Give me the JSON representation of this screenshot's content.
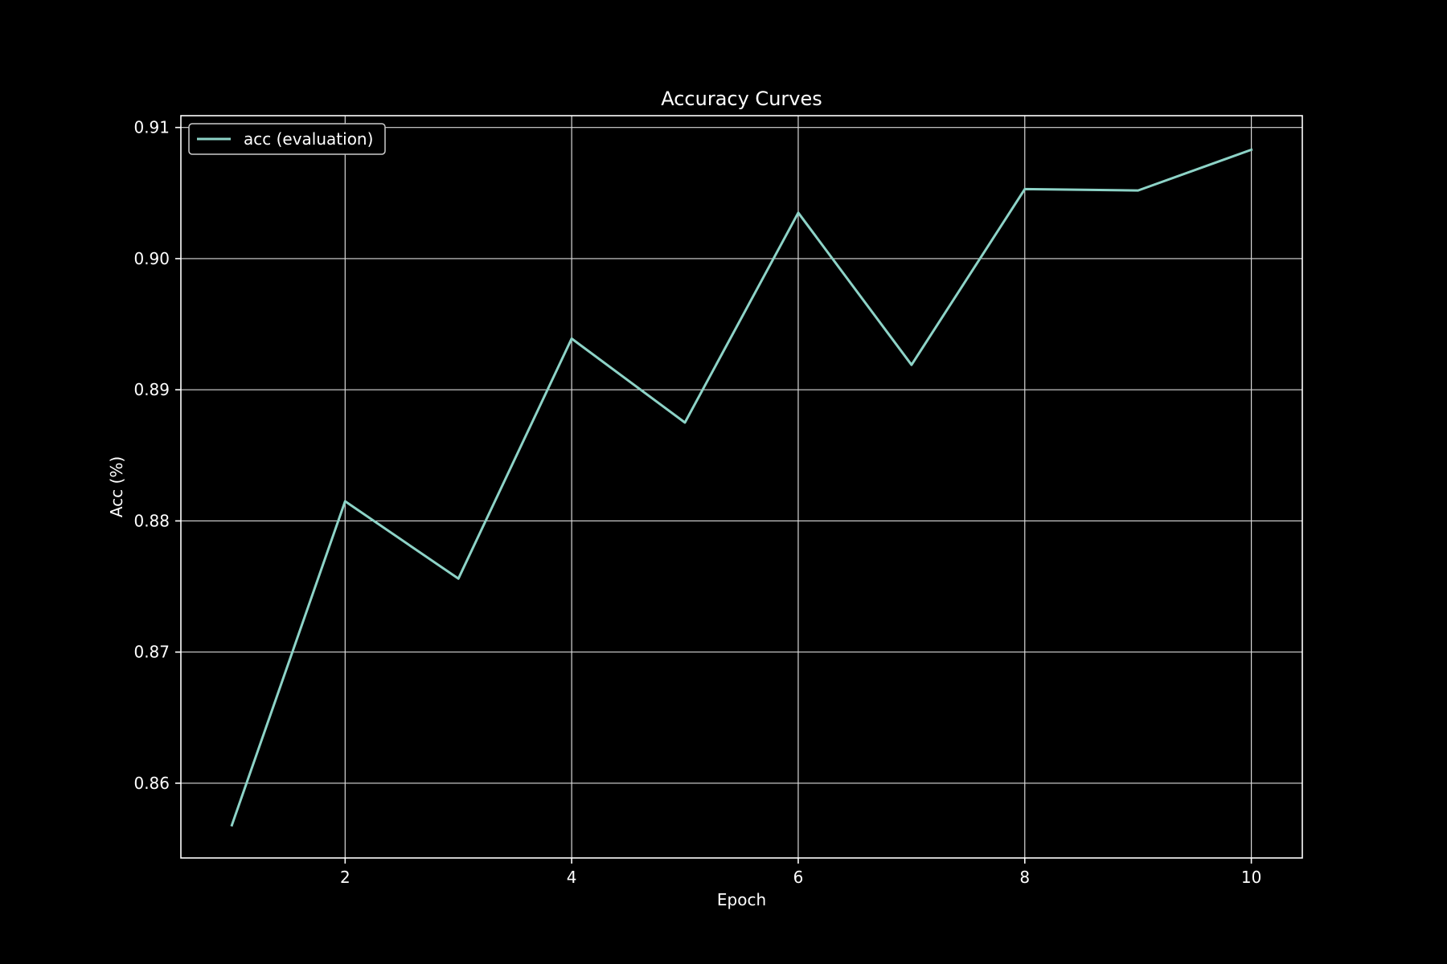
{
  "chart_data": {
    "type": "line",
    "title": "Accuracy Curves",
    "xlabel": "Epoch",
    "ylabel": "Acc (%)",
    "x": [
      1,
      2,
      3,
      4,
      5,
      6,
      7,
      8,
      9,
      10
    ],
    "series": [
      {
        "name": "acc (evaluation)",
        "color": "#8dd3c7",
        "values": [
          0.8568,
          0.8815,
          0.8756,
          0.8939,
          0.8875,
          0.9035,
          0.8919,
          0.9053,
          0.9052,
          0.9083
        ]
      }
    ],
    "xlim": [
      0.55,
      10.45
    ],
    "ylim": [
      0.8543,
      0.9109
    ],
    "xticks": [
      2,
      4,
      6,
      8,
      10
    ],
    "xtick_labels": [
      "2",
      "4",
      "6",
      "8",
      "10"
    ],
    "yticks": [
      0.86,
      0.87,
      0.88,
      0.89,
      0.9,
      0.91
    ],
    "ytick_labels": [
      "0.86",
      "0.87",
      "0.88",
      "0.89",
      "0.90",
      "0.91"
    ],
    "grid": true,
    "legend_position": "top-left",
    "background_color": "#000000",
    "foreground_color": "#ffffff"
  }
}
